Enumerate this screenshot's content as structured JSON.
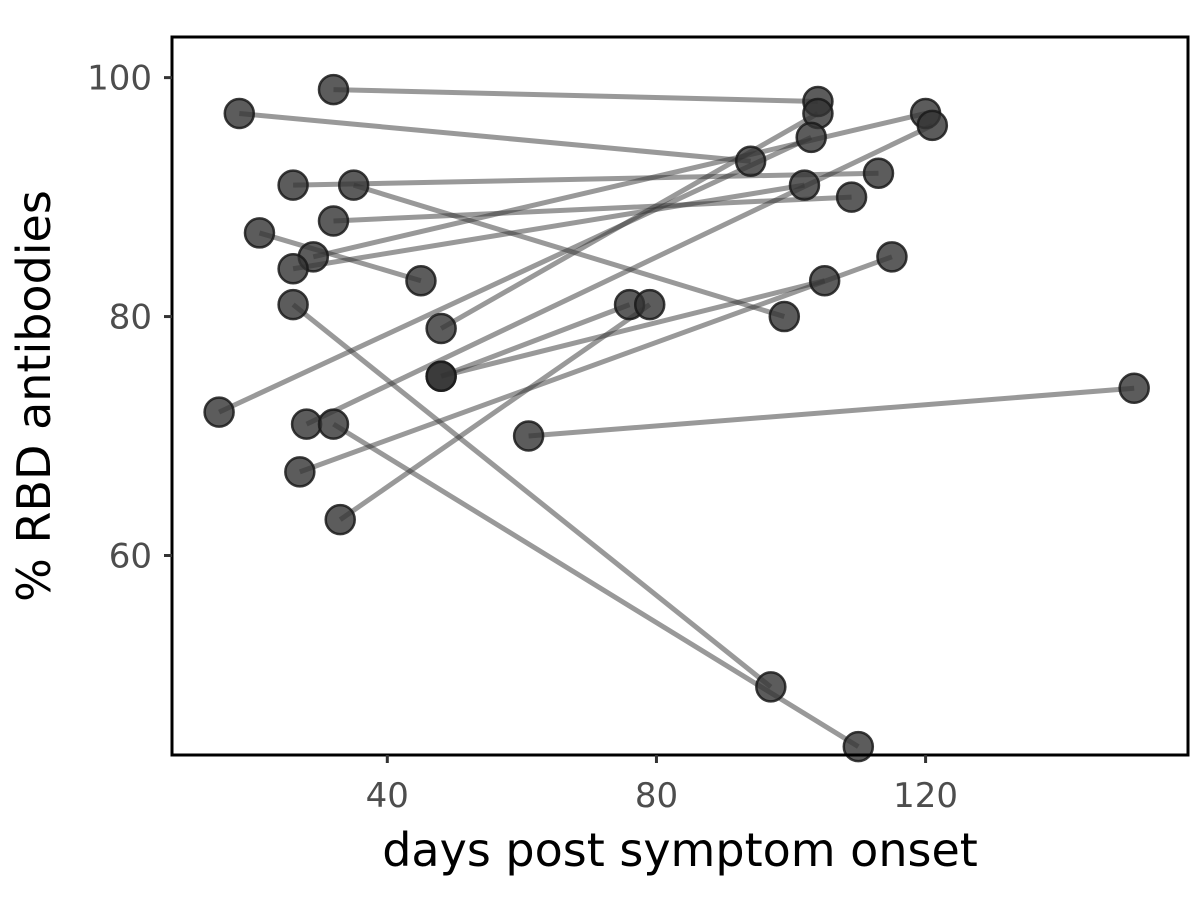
{
  "chart_data": {
    "type": "scatter",
    "xlabel": "days post symptom onset",
    "ylabel": "% RBD antibodies",
    "xlim": [
      8,
      159
    ],
    "ylim": [
      43.3,
      103.4
    ],
    "xticks": [
      40,
      80,
      120
    ],
    "yticks": [
      60,
      80,
      100
    ],
    "grid": false,
    "connected_pairs": true,
    "colors": {
      "point": "#333333",
      "line": "#333333"
    },
    "pairs": [
      {
        "x": [
          32,
          104
        ],
        "y": [
          99,
          98
        ]
      },
      {
        "x": [
          18,
          94
        ],
        "y": [
          97,
          93
        ]
      },
      {
        "x": [
          26,
          113
        ],
        "y": [
          91,
          92
        ]
      },
      {
        "x": [
          35,
          99
        ],
        "y": [
          91,
          80
        ]
      },
      {
        "x": [
          32,
          109
        ],
        "y": [
          88,
          90
        ]
      },
      {
        "x": [
          21,
          45
        ],
        "y": [
          87,
          83
        ]
      },
      {
        "x": [
          29,
          120
        ],
        "y": [
          85,
          97
        ]
      },
      {
        "x": [
          26,
          102
        ],
        "y": [
          84,
          91
        ]
      },
      {
        "x": [
          26,
          97
        ],
        "y": [
          81,
          49
        ]
      },
      {
        "x": [
          48,
          104
        ],
        "y": [
          79,
          97
        ]
      },
      {
        "x": [
          48,
          76
        ],
        "y": [
          75,
          81
        ]
      },
      {
        "x": [
          15,
          103
        ],
        "y": [
          72,
          95
        ]
      },
      {
        "x": [
          28,
          121
        ],
        "y": [
          71,
          96
        ]
      },
      {
        "x": [
          32,
          110
        ],
        "y": [
          71,
          44
        ]
      },
      {
        "x": [
          27,
          115
        ],
        "y": [
          67,
          85
        ]
      },
      {
        "x": [
          33,
          79
        ],
        "y": [
          63,
          81
        ]
      },
      {
        "x": [
          61,
          151
        ],
        "y": [
          70,
          74
        ]
      },
      {
        "x": [
          48,
          105
        ],
        "y": [
          75,
          83
        ]
      }
    ]
  }
}
